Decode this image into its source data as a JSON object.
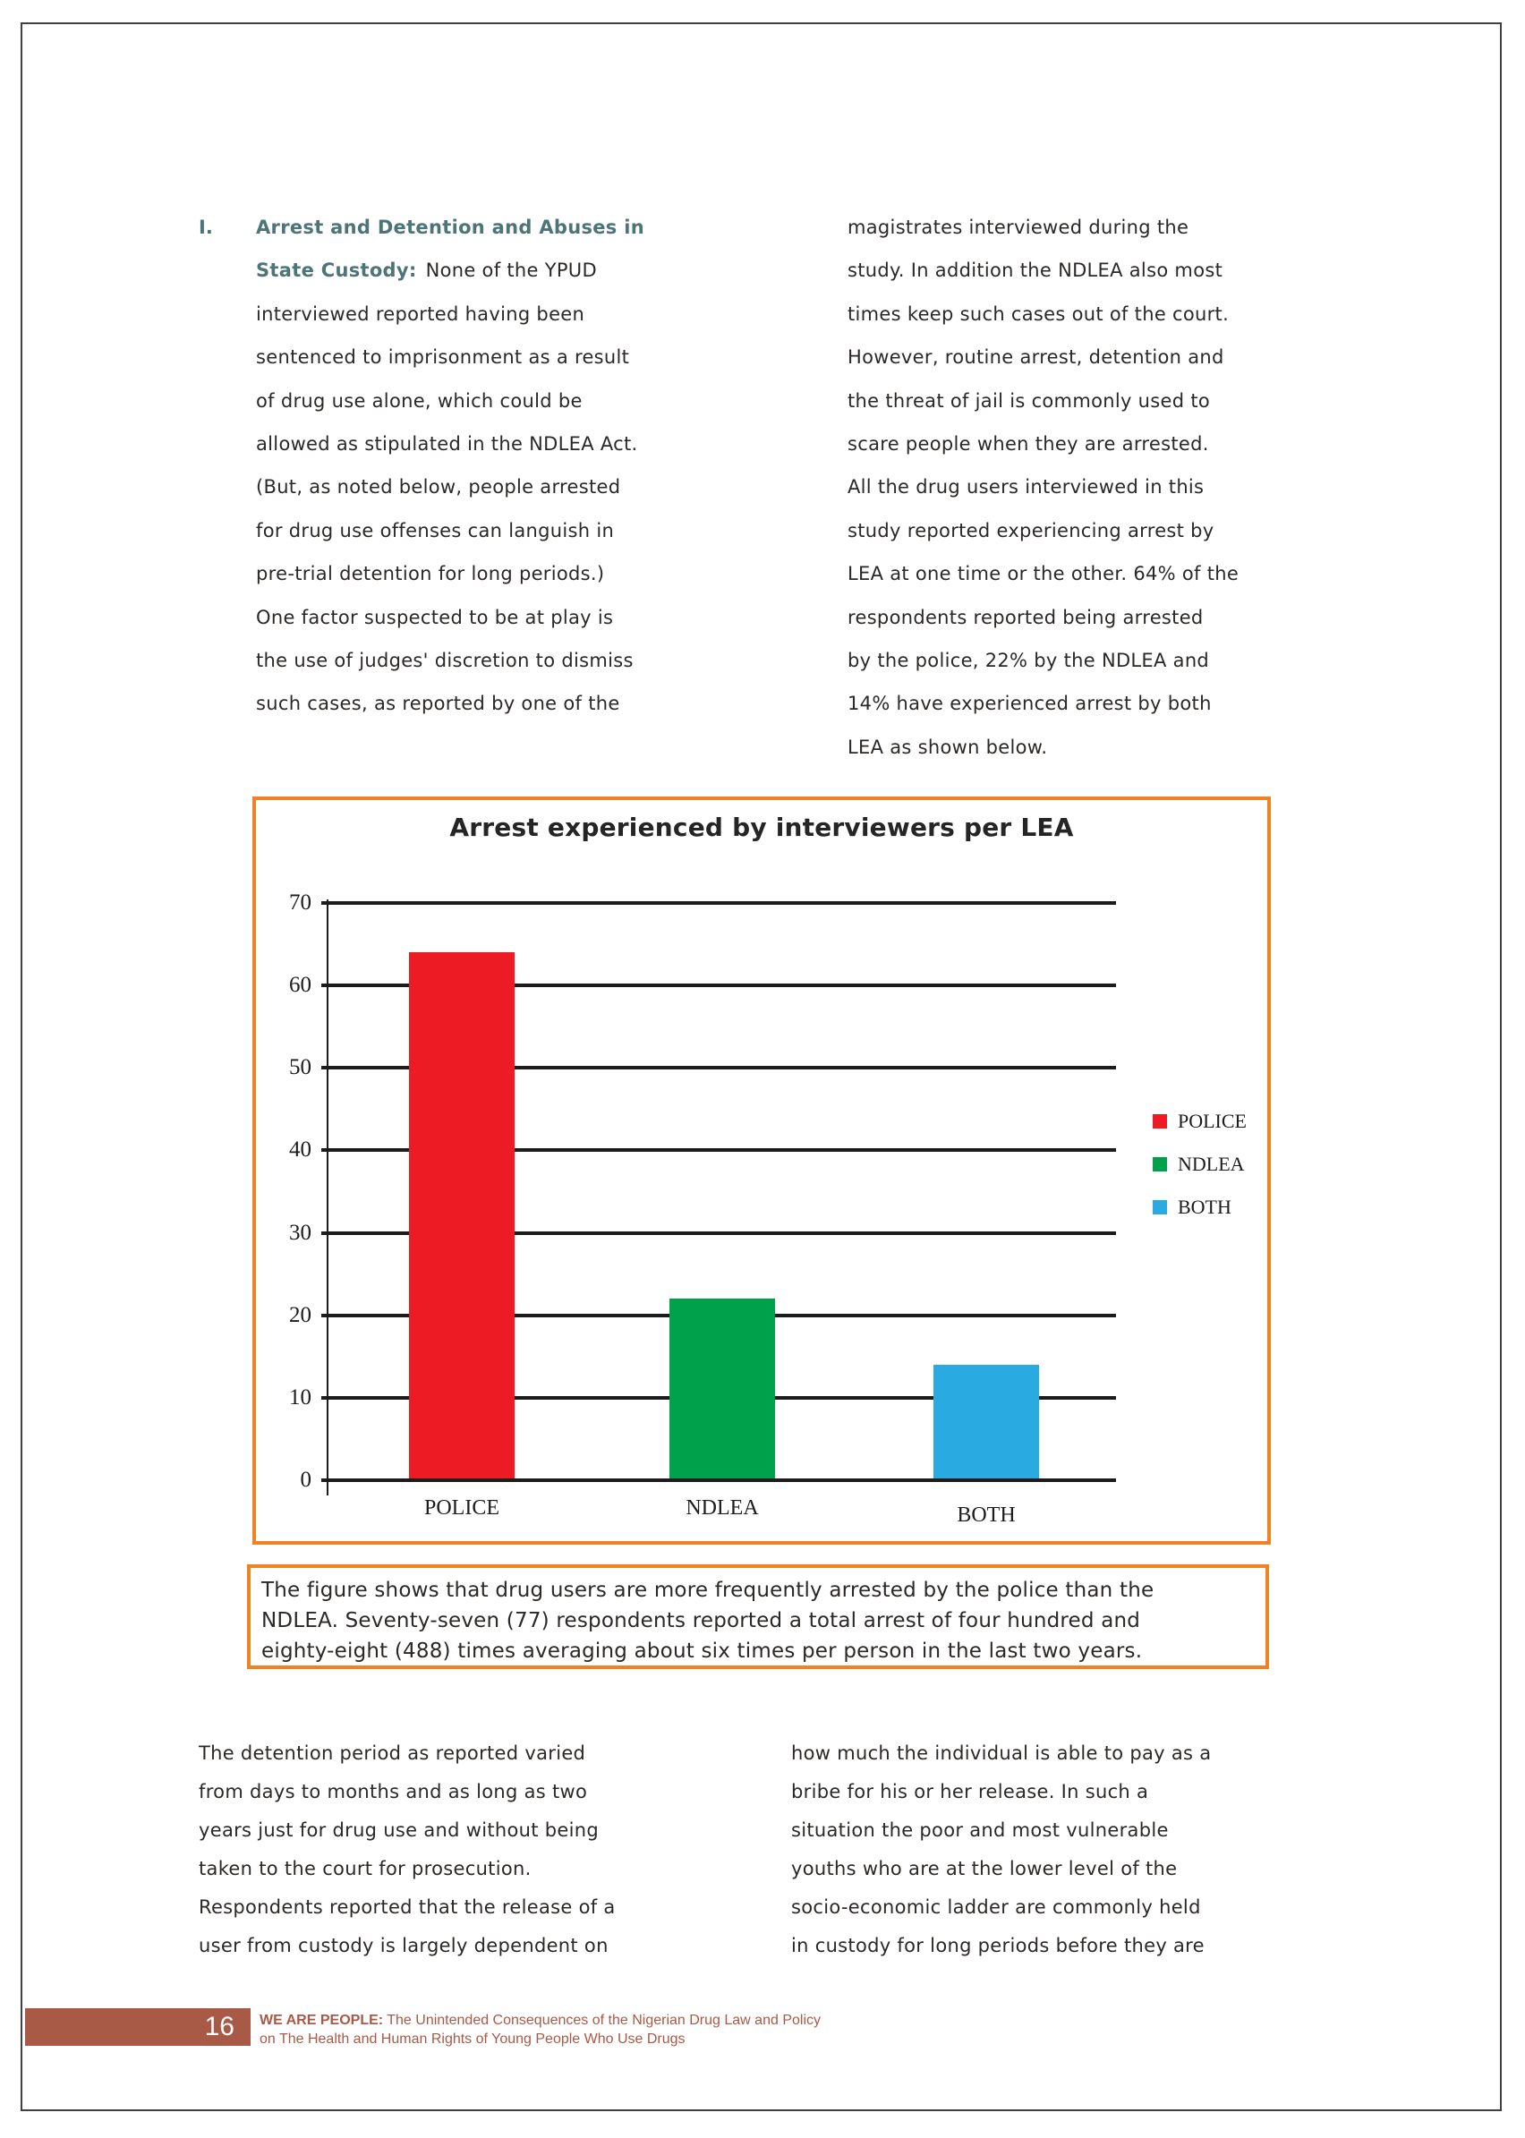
{
  "colors": {
    "heading_teal": "#4d7578",
    "accent_orange": "#f08221",
    "bar_red": "#ed1c24",
    "bar_green": "#00a14b",
    "bar_blue": "#29abe2",
    "footer_brown": "#a85a46",
    "body_text": "#2b2826"
  },
  "article": {
    "list_marker": "I.",
    "heading_line1": "Arrest and Detention and Abuses in",
    "heading_line2_bold": "State Custody:",
    "heading_line2_rest": "None of the YPUD",
    "left_column_lines": [
      "interviewed reported having been",
      "sentenced to imprisonment as a result",
      "of drug use alone, which could be",
      "allowed as stipulated in the NDLEA Act.",
      "(But, as noted below, people arrested",
      "for drug use offenses can languish in",
      "pre-trial detention for long periods.)",
      "One factor suspected to be at play is",
      "the use of judges' discretion to dismiss",
      "such cases, as reported by one of the"
    ],
    "right_column_lines": [
      "magistrates interviewed during the",
      "study. In addition the NDLEA also most",
      "times keep such cases out of the court.",
      "However, routine arrest, detention and",
      "the threat of jail is commonly used to",
      "scare people when they are arrested.",
      "All the drug users interviewed in this",
      "study reported experiencing arrest by",
      "LEA at one time or the other. 64% of the",
      "respondents reported being arrested",
      "by the police, 22% by the NDLEA and",
      "14% have experienced arrest by both",
      "LEA as shown below."
    ],
    "bottom_left_lines": [
      "The detention period as reported varied",
      "from days to months and as long as two",
      "years just for drug use and without being",
      "taken to the court for prosecution.",
      "Respondents reported that the release of a",
      "user from custody is largely dependent on"
    ],
    "bottom_right_lines": [
      "how much the individual is able to pay as a",
      "bribe for his or her release. In such a",
      "situation the poor and most vulnerable",
      "youths who are at the lower level of the",
      "socio-economic ladder are commonly held",
      "in custody for long periods before they are"
    ]
  },
  "chart_caption": {
    "lines": [
      "The figure shows that drug users are more frequently arrested by the police than the",
      "NDLEA. Seventy-seven (77) respondents reported a total arrest of four hundred and",
      "eighty-eight (488) times averaging about six times per person in the last two years."
    ]
  },
  "chart_data": {
    "type": "bar",
    "title": "Arrest experienced by interviewers per LEA",
    "categories": [
      "POLICE",
      "NDLEA",
      "BOTH"
    ],
    "values": [
      64,
      22,
      14
    ],
    "legend": [
      {
        "label": "POLICE",
        "color": "#ed1c24"
      },
      {
        "label": "NDLEA",
        "color": "#00a14b"
      },
      {
        "label": "BOTH",
        "color": "#29abe2"
      }
    ],
    "xlabel": "",
    "ylabel": "",
    "ylim": [
      0,
      70
    ],
    "yticks": [
      0,
      10,
      20,
      30,
      40,
      50,
      60,
      70
    ],
    "grid": true,
    "legend_position": "right"
  },
  "footer": {
    "page_number": "16",
    "line1_bold": "WE ARE PEOPLE:",
    "line1_rest": " The Unintended Consequences of the Nigerian Drug Law and Policy",
    "line2": "on The Health and Human Rights of Young People Who Use Drugs"
  }
}
